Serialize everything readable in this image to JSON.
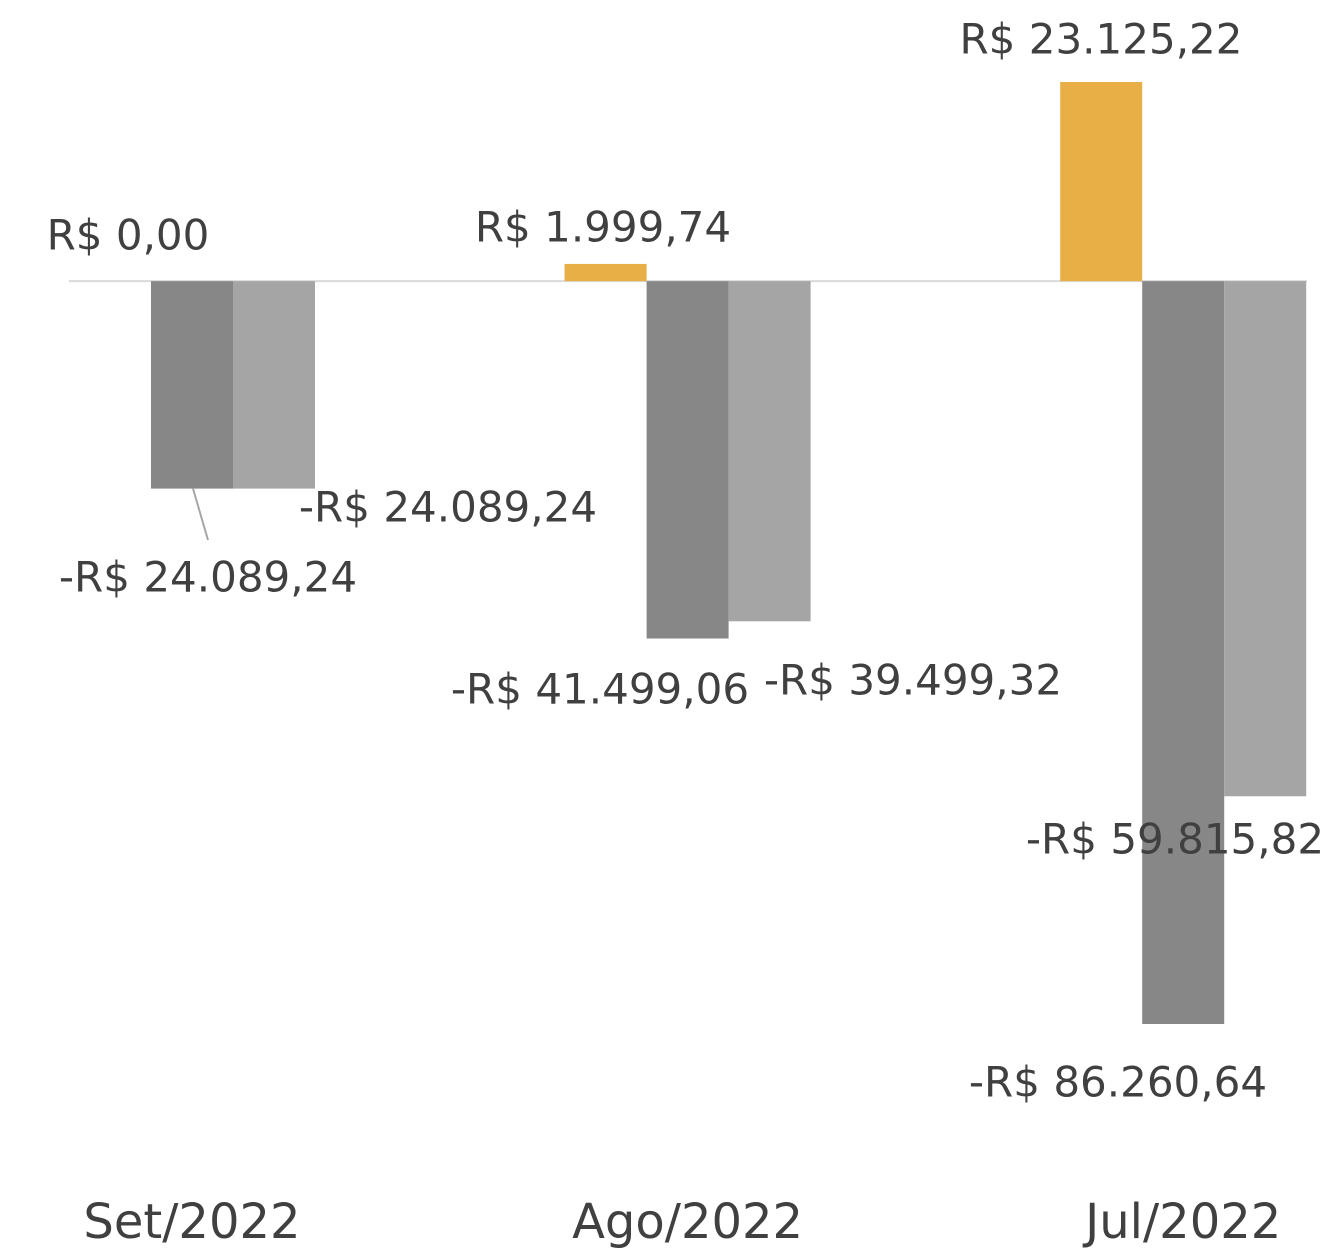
{
  "chart_data": {
    "type": "bar",
    "categories": [
      "Set/2022",
      "Ago/2022",
      "Jul/2022"
    ],
    "series": [
      {
        "color": "#E9AF47",
        "values": [
          0,
          1999.74,
          23125.22
        ],
        "value_labels": [
          "R$ 0,00",
          "R$ 1.999,74",
          "R$ 23.125,22"
        ]
      },
      {
        "color": "#878787",
        "values": [
          -24089.24,
          -41499.06,
          -86260.64
        ],
        "value_labels": [
          "-R$ 24.089,24",
          "-R$ 41.499,06",
          "-R$ 86.260,64"
        ]
      },
      {
        "color": "#A5A5A5",
        "values": [
          -24089.24,
          -39499.32,
          -59815.82
        ],
        "value_labels": [
          "-R$ 24.089,24",
          "-R$ 39.499,32",
          "-R$ 59.815,82"
        ]
      }
    ]
  }
}
